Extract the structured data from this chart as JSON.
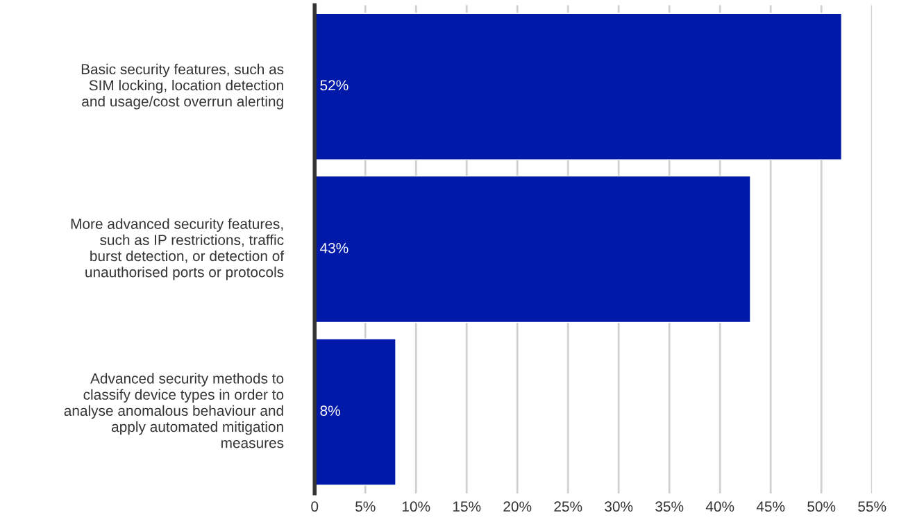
{
  "chart_data": {
    "type": "bar",
    "orientation": "horizontal",
    "categories": [
      "Basic security features, such as SIM locking, location detection and usage/cost overrun alerting",
      "More advanced security features, such as IP restrictions, traffic burst detection, or detection of unauthorised ports or protocols",
      "Advanced security methods to classify device types in order to analyse anomalous behaviour and apply automated mitigation measures"
    ],
    "values": [
      52,
      43,
      8
    ],
    "value_labels": [
      "52%",
      "43%",
      "8%"
    ],
    "color": "#0019a8",
    "xlim": [
      0,
      55
    ],
    "xticks": [
      0,
      {
        "value": 5,
        "label": "5%"
      },
      {
        "value": 10,
        "label": "10%"
      },
      {
        "value": 15,
        "label": "15%"
      },
      {
        "value": 20,
        "label": "20%"
      },
      {
        "value": 25,
        "label": "25%"
      },
      {
        "value": 30,
        "label": "30%"
      },
      {
        "value": 35,
        "label": "35%"
      },
      {
        "value": 40,
        "label": "40%"
      },
      {
        "value": 45,
        "label": "45%"
      },
      {
        "value": 50,
        "label": "50%"
      },
      {
        "value": 55,
        "label": "55%"
      }
    ],
    "grid": "x",
    "legend": false
  }
}
